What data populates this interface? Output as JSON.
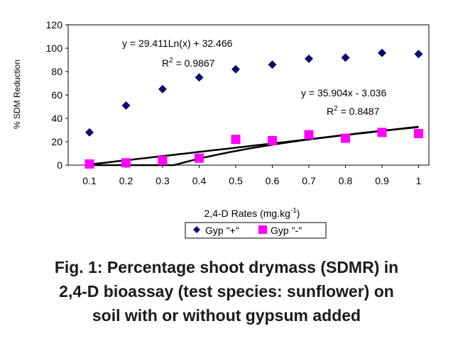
{
  "chart_data": {
    "type": "scatter",
    "ylabel": "% SDM Reduction",
    "xlabel": "2,4-D Rates (mg.kg",
    "xlabel_sup": "-1",
    "xlabel_close": ")",
    "x": [
      0.1,
      0.2,
      0.3,
      0.4,
      0.5,
      0.6,
      0.7,
      0.8,
      0.9,
      1
    ],
    "x_tick_labels": [
      "0.1",
      "0.2",
      "0.3",
      "0.4",
      "0.5",
      "0.6",
      "0.7",
      "0.8",
      "0.9",
      "1"
    ],
    "ylim": [
      0,
      120
    ],
    "y_tick_values": [
      0,
      20,
      40,
      60,
      80,
      100,
      120
    ],
    "y_tick_labels": [
      "0",
      "20",
      "40",
      "60",
      "80",
      "100",
      "120"
    ],
    "grid": false,
    "legend_position": "bottom",
    "series": [
      {
        "name": "Gyp \"+\"",
        "marker": "diamond",
        "color": "#0a0a6e",
        "values": [
          28,
          51,
          65,
          75,
          82,
          86,
          91,
          92,
          96,
          95
        ],
        "trend": {
          "kind": "log",
          "a": 29.411,
          "b": 32.466,
          "equation": "y = 29.411Ln(x) + 32.466",
          "r2_label": "R",
          "r2_sup": "2",
          "r2_value": " = 0.9867"
        }
      },
      {
        "name": "Gyp \"-\"",
        "marker": "square",
        "color": "#ff00ff",
        "values": [
          1,
          2,
          4,
          6,
          22,
          21,
          26,
          23,
          28,
          27
        ],
        "trend": {
          "kind": "linear",
          "a": 35.904,
          "b": -3.036,
          "equation": "y = 35.904x - 3.036",
          "r2_label": "R",
          "r2_sup": "2",
          "r2_value": " = 0.8487"
        }
      }
    ]
  },
  "caption": {
    "line1": "Fig. 1:  Percentage shoot drymass (SDMR) in",
    "line2": "2,4-D bioassay (test species: sunflower) on",
    "line3": "soil with or without gypsum added"
  }
}
